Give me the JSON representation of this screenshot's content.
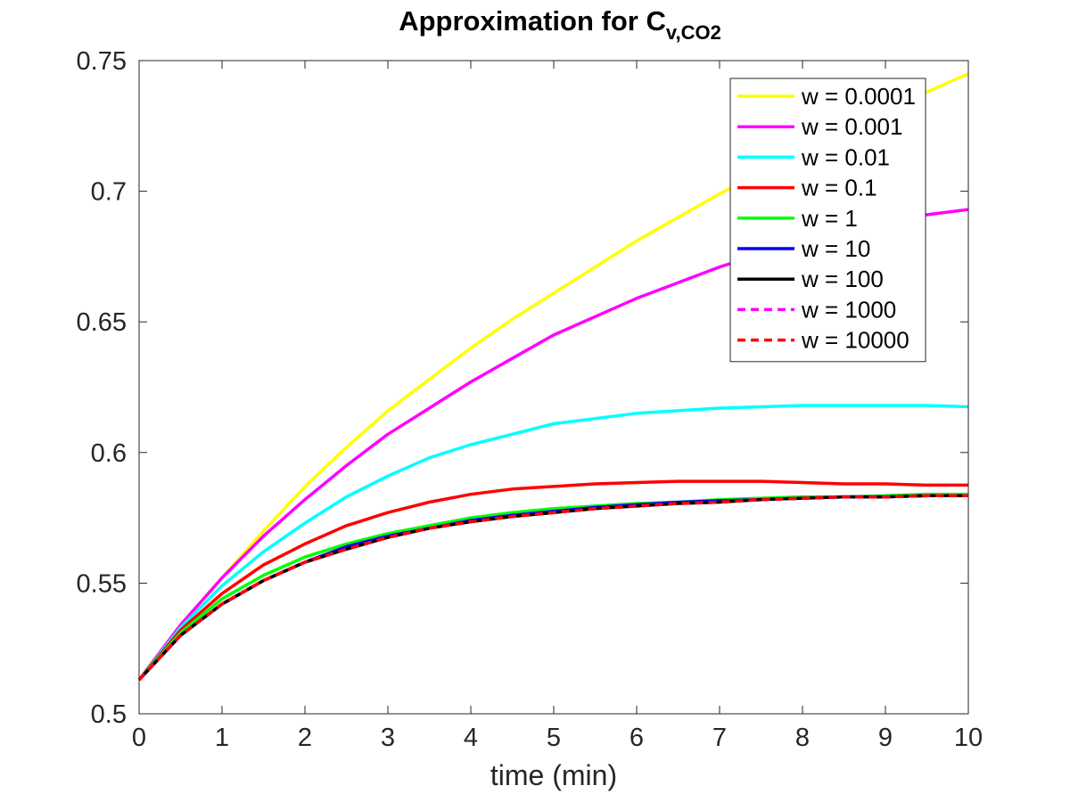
{
  "chart_data": {
    "type": "line",
    "title": "Approximation for C",
    "title_subscript": "v,CO2",
    "xlabel": "time (min)",
    "ylabel": "",
    "xlim": [
      0,
      10
    ],
    "ylim": [
      0.5,
      0.75
    ],
    "xticks": [
      "0",
      "1",
      "2",
      "3",
      "4",
      "5",
      "6",
      "7",
      "8",
      "9",
      "10"
    ],
    "yticks": [
      "0.5",
      "0.55",
      "0.6",
      "0.65",
      "0.7",
      "0.75"
    ],
    "grid": false,
    "legend_position": "top-right",
    "x": [
      0,
      0.5,
      1,
      1.5,
      2,
      2.5,
      3,
      3.5,
      4,
      4.5,
      5,
      5.5,
      6,
      6.5,
      7,
      7.5,
      8,
      8.5,
      9,
      9.5,
      10
    ],
    "series": [
      {
        "name": "w = 0.0001",
        "color": "#ffff00",
        "dash": false,
        "values": [
          0.513,
          0.534,
          0.552,
          0.57,
          0.587,
          0.602,
          0.616,
          0.628,
          0.64,
          0.651,
          0.661,
          0.671,
          0.681,
          0.69,
          0.699,
          0.707,
          0.715,
          0.723,
          0.731,
          0.738,
          0.745
        ]
      },
      {
        "name": "w = 0.001",
        "color": "#ff00ff",
        "dash": false,
        "values": [
          0.513,
          0.534,
          0.552,
          0.568,
          0.582,
          0.595,
          0.607,
          0.617,
          0.627,
          0.636,
          0.645,
          0.652,
          0.659,
          0.665,
          0.671,
          0.676,
          0.68,
          0.684,
          0.688,
          0.691,
          0.693
        ]
      },
      {
        "name": "w = 0.01",
        "color": "#00ffff",
        "dash": false,
        "values": [
          0.513,
          0.533,
          0.549,
          0.562,
          0.573,
          0.583,
          0.591,
          0.598,
          0.603,
          0.607,
          0.611,
          0.613,
          0.615,
          0.616,
          0.617,
          0.6175,
          0.618,
          0.618,
          0.618,
          0.618,
          0.6175
        ]
      },
      {
        "name": "w = 0.1",
        "color": "#ff0000",
        "dash": false,
        "values": [
          0.513,
          0.532,
          0.546,
          0.557,
          0.565,
          0.572,
          0.577,
          0.581,
          0.584,
          0.586,
          0.587,
          0.588,
          0.5885,
          0.589,
          0.589,
          0.589,
          0.5885,
          0.588,
          0.588,
          0.5875,
          0.5875
        ]
      },
      {
        "name": "w = 1",
        "color": "#00ff00",
        "dash": false,
        "values": [
          0.513,
          0.531,
          0.544,
          0.553,
          0.56,
          0.565,
          0.569,
          0.572,
          0.575,
          0.577,
          0.5785,
          0.5795,
          0.5805,
          0.581,
          0.582,
          0.5825,
          0.583,
          0.583,
          0.5835,
          0.584,
          0.584
        ]
      },
      {
        "name": "w = 10",
        "color": "#0000ff",
        "dash": false,
        "values": [
          0.513,
          0.53,
          0.542,
          0.551,
          0.558,
          0.564,
          0.568,
          0.571,
          0.574,
          0.576,
          0.5775,
          0.579,
          0.58,
          0.581,
          0.5815,
          0.582,
          0.5825,
          0.583,
          0.583,
          0.5835,
          0.5835
        ]
      },
      {
        "name": "w = 100",
        "color": "#000000",
        "dash": false,
        "values": [
          0.513,
          0.53,
          0.542,
          0.551,
          0.558,
          0.563,
          0.5675,
          0.571,
          0.5735,
          0.5755,
          0.577,
          0.5785,
          0.5795,
          0.5805,
          0.581,
          0.582,
          0.5825,
          0.583,
          0.583,
          0.5835,
          0.5835
        ]
      },
      {
        "name": "w = 1000",
        "color": "#ff00ff",
        "dash": true,
        "values": [
          0.513,
          0.53,
          0.542,
          0.551,
          0.558,
          0.563,
          0.5675,
          0.571,
          0.5735,
          0.5755,
          0.577,
          0.5785,
          0.5795,
          0.5805,
          0.581,
          0.582,
          0.5825,
          0.583,
          0.583,
          0.5835,
          0.5835
        ]
      },
      {
        "name": "w = 10000",
        "color": "#ff0000",
        "dash": true,
        "values": [
          0.513,
          0.53,
          0.542,
          0.551,
          0.558,
          0.563,
          0.5675,
          0.571,
          0.5735,
          0.5755,
          0.577,
          0.5785,
          0.5795,
          0.5805,
          0.581,
          0.582,
          0.5825,
          0.583,
          0.583,
          0.5835,
          0.5835
        ]
      }
    ]
  }
}
